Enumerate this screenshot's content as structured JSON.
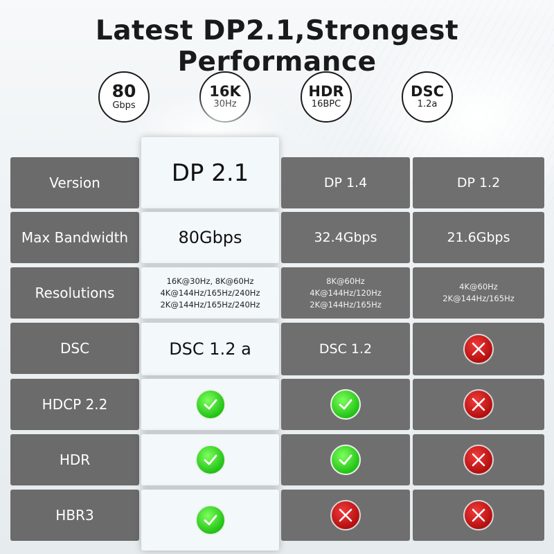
{
  "title": "Latest DP2.1,Strongest Performance",
  "badges": [
    {
      "big": "80",
      "small": "Gbps"
    },
    {
      "big": "16K",
      "small": "30Hz"
    },
    {
      "big": "HDR",
      "small": "16BPC"
    },
    {
      "big": "DSC",
      "small": "1.2a"
    }
  ],
  "table": {
    "rows": [
      {
        "label": "Version",
        "dp21": "DP 2.1",
        "dp14": "DP 1.4",
        "dp12": "DP 1.2"
      },
      {
        "label": "Max Bandwidth",
        "dp21": "80Gbps",
        "dp14": "32.4Gbps",
        "dp12": "21.6Gbps"
      },
      {
        "label": "Resolutions",
        "dp21_lines": [
          "16K@30Hz, 8K@60Hz",
          "4K@144Hz/165Hz/240Hz",
          "2K@144Hz/165Hz/240Hz"
        ],
        "dp14_lines": [
          "8K@60Hz",
          "4K@144Hz/120Hz",
          "2K@144Hz/165Hz"
        ],
        "dp12_lines": [
          "4K@60Hz",
          "2K@144Hz/165Hz"
        ]
      },
      {
        "label": "DSC",
        "dp21": "DSC 1.2 a",
        "dp14": "DSC 1.2",
        "dp12": "cross"
      },
      {
        "label": "HDCP 2.2",
        "dp21": "check",
        "dp14": "check",
        "dp12": "cross"
      },
      {
        "label": "HDR",
        "dp21": "check",
        "dp14": "check",
        "dp12": "cross"
      },
      {
        "label": "HBR3",
        "dp21": "check",
        "dp14": "cross",
        "dp12": "cross"
      }
    ]
  },
  "colors": {
    "check": "#22c216",
    "cross": "#c41414",
    "cell_dark": "#6f6f6f",
    "highlight": "#f3f8fb"
  }
}
